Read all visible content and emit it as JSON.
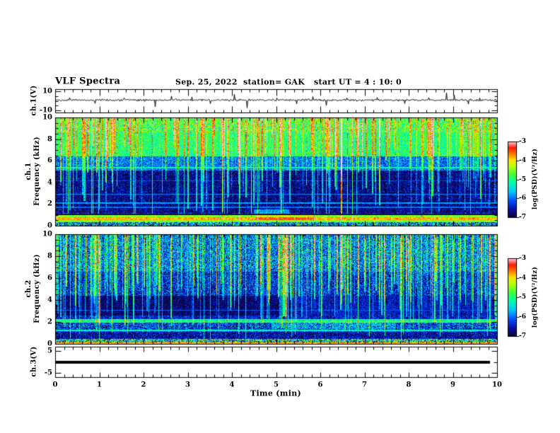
{
  "header": {
    "title": "VLF Spectra",
    "date": "Sep. 25, 2022",
    "station": "station= GAK",
    "start_ut": "start UT =  4 : 10: 0"
  },
  "panels": {
    "ch1_wave": {
      "ylabel": "ch.1(V)",
      "ytick_labels": [
        "10",
        "-10"
      ],
      "ytick_values": [
        10,
        -10
      ]
    },
    "spec1": {
      "ylabel_ch": "ch.1",
      "ylabel_freq": "Frequency (kHz)",
      "ytick_labels": [
        "10",
        "8",
        "6",
        "4",
        "2",
        "0"
      ]
    },
    "spec2": {
      "ylabel_ch": "ch.2",
      "ylabel_freq": "Frequency (kHz)",
      "ytick_labels": [
        "10",
        "8",
        "6",
        "4",
        "2",
        "0"
      ]
    },
    "ch3": {
      "ylabel": "ch.3(V)",
      "ytick_labels": [
        "5",
        "-5"
      ],
      "ytick_values": [
        5,
        -5
      ]
    }
  },
  "xaxis": {
    "label": "Time (min)",
    "tick_labels": [
      "0",
      "1",
      "2",
      "3",
      "4",
      "5",
      "6",
      "7",
      "8",
      "9",
      "10"
    ],
    "tick_values": [
      0,
      1,
      2,
      3,
      4,
      5,
      6,
      7,
      8,
      9,
      10
    ]
  },
  "colorbars": {
    "label": "log(PSD)(V²/Hz)",
    "tick_labels": [
      "-3",
      "-4",
      "-5",
      "-6",
      "-7"
    ],
    "tick_values": [
      -3,
      -4,
      -5,
      -6,
      -7
    ]
  },
  "colormap": {
    "stops": [
      [
        0.0,
        [
          8,
          5,
          45
        ]
      ],
      [
        0.1,
        [
          10,
          10,
          160
        ]
      ],
      [
        0.22,
        [
          0,
          80,
          255
        ]
      ],
      [
        0.34,
        [
          0,
          195,
          255
        ]
      ],
      [
        0.46,
        [
          0,
          255,
          170
        ]
      ],
      [
        0.56,
        [
          60,
          255,
          60
        ]
      ],
      [
        0.68,
        [
          185,
          255,
          0
        ]
      ],
      [
        0.76,
        [
          255,
          225,
          0
        ]
      ],
      [
        0.84,
        [
          255,
          120,
          0
        ]
      ],
      [
        0.92,
        [
          255,
          25,
          0
        ]
      ],
      [
        1.0,
        [
          255,
          205,
          225
        ]
      ]
    ]
  },
  "chart_data": [
    {
      "type": "line",
      "name": "ch1-waveform",
      "ylabel": "ch.1(V)",
      "xlim": [
        0,
        10
      ],
      "ylim": [
        -10,
        10
      ],
      "baseline": 0.8,
      "noise_sigma": 0.9,
      "seed": 42,
      "spikes": [
        [
          0.32,
          3.2
        ],
        [
          0.9,
          -2.8
        ],
        [
          1.55,
          3.0
        ],
        [
          2.25,
          -6.5
        ],
        [
          2.62,
          5.0
        ],
        [
          3.08,
          4.2
        ],
        [
          3.5,
          -3.0
        ],
        [
          4.05,
          7.0
        ],
        [
          4.33,
          -7.5
        ],
        [
          5.0,
          3.0
        ],
        [
          5.45,
          -3.2
        ],
        [
          5.82,
          4.5
        ],
        [
          6.12,
          -5.0
        ],
        [
          6.6,
          3.0
        ],
        [
          7.28,
          3.6
        ],
        [
          7.9,
          -3.0
        ],
        [
          8.45,
          3.2
        ],
        [
          8.85,
          8.5
        ],
        [
          9.02,
          6.0
        ],
        [
          9.35,
          -3.5
        ],
        [
          9.6,
          3.0
        ]
      ]
    },
    {
      "type": "heatmap",
      "name": "ch1-spectrogram",
      "ylabel": "ch.1 Frequency (kHz)",
      "xlim": [
        0,
        10
      ],
      "ylim": [
        0,
        10
      ],
      "zlabel": "log(PSD)(V²/Hz)",
      "zlim": [
        -7,
        -3
      ],
      "seed": 1234,
      "bands": [
        {
          "f": [
            0,
            0.3
          ],
          "v": -5.8,
          "noise": 1.4
        },
        {
          "f": [
            0.3,
            0.55
          ],
          "v": -4.55,
          "noise": 0.35
        },
        {
          "f": [
            0.55,
            0.78
          ],
          "v": -3.85,
          "noise": 0.3
        },
        {
          "f": [
            0.78,
            0.95
          ],
          "v": -4.5,
          "noise": 0.35
        },
        {
          "f": [
            0.95,
            1.2
          ],
          "v": -6.4,
          "noise": 0.7
        },
        {
          "f": [
            1.2,
            5.1
          ],
          "v": -6.7,
          "noise": 0.5
        },
        {
          "f": [
            5.1,
            6.4
          ],
          "v": -5.95,
          "noise": 0.65
        },
        {
          "f": [
            6.4,
            8.6
          ],
          "v": -4.95,
          "noise": 0.5
        },
        {
          "f": [
            8.6,
            10.01
          ],
          "v": -4.75,
          "noise": 0.75
        }
      ],
      "hlines": [
        {
          "f": 5.35,
          "v": -5.2,
          "hw": 0.06
        },
        {
          "f": 2.92,
          "v": -5.9,
          "hw": 0.05
        },
        {
          "f": 2.08,
          "v": -5.8,
          "hw": 0.05
        },
        {
          "f": 1.7,
          "v": -6.0,
          "hw": 0.05
        },
        {
          "f": 4.15,
          "v": -6.2,
          "hw": 0.04
        },
        {
          "f": 1.05,
          "v": -6.85,
          "hw": 0.07,
          "set": true
        }
      ],
      "vstreaks": [
        {
          "count": 130,
          "f_bottom": [
            0.9,
            5.3
          ],
          "f_top": 10,
          "dv": [
            0.5,
            1.5
          ],
          "width": [
            1,
            2
          ]
        },
        {
          "count": 50,
          "f_bottom": [
            6.0,
            8.5
          ],
          "f_top": 10,
          "dv": [
            0.8,
            1.6
          ],
          "width": [
            1,
            2
          ]
        },
        {
          "count": 25,
          "f_bottom": [
            0.4,
            1.2
          ],
          "f_top": 10,
          "dv": [
            1.0,
            1.8
          ],
          "width": [
            1,
            1
          ]
        }
      ],
      "events": [
        {
          "t": [
            4.55,
            5.85
          ],
          "f": [
            0.5,
            0.95
          ],
          "dv": 0.35
        },
        {
          "t": [
            4.5,
            5.3
          ],
          "f": [
            0.95,
            1.5
          ],
          "dv": 0.9
        }
      ]
    },
    {
      "type": "heatmap",
      "name": "ch2-spectrogram",
      "ylabel": "ch.2 Frequency (kHz)",
      "xlim": [
        0,
        10
      ],
      "ylim": [
        0,
        10
      ],
      "zlabel": "log(PSD)(V²/Hz)",
      "zlim": [
        -7,
        -3
      ],
      "seed": 777,
      "bands": [
        {
          "f": [
            0,
            0.45
          ],
          "v": -5.3,
          "noise": 1.9
        },
        {
          "f": [
            0.45,
            1.1
          ],
          "v": -6.6,
          "noise": 0.55
        },
        {
          "f": [
            1.1,
            1.32
          ],
          "v": -6.05,
          "noise": 0.6
        },
        {
          "f": [
            1.32,
            1.95
          ],
          "v": -6.25,
          "noise": 0.85
        },
        {
          "f": [
            1.95,
            2.25
          ],
          "v": -5.3,
          "noise": 0.7
        },
        {
          "f": [
            2.25,
            2.55
          ],
          "v": -6.45,
          "noise": 0.5
        },
        {
          "f": [
            2.55,
            4.4
          ],
          "v": -6.8,
          "noise": 0.4
        },
        {
          "f": [
            4.4,
            6.6
          ],
          "v": -6.35,
          "noise": 0.75
        },
        {
          "f": [
            6.6,
            10.01
          ],
          "v": -5.95,
          "noise": 0.95
        }
      ],
      "hlines": [
        {
          "f": 2.02,
          "v": -4.95,
          "hw": 0.06
        },
        {
          "f": 2.2,
          "v": -5.3,
          "hw": 0.05
        },
        {
          "f": 1.22,
          "v": -5.25,
          "hw": 0.05
        },
        {
          "f": 3.05,
          "v": -6.1,
          "hw": 0.04
        },
        {
          "f": 0.06,
          "v": -3.8,
          "hw": 0.06
        }
      ],
      "vstreaks": [
        {
          "count": 220,
          "f_bottom": [
            1.4,
            6.0
          ],
          "f_top": 10,
          "dv": [
            0.5,
            1.3
          ],
          "width": [
            1,
            2
          ]
        },
        {
          "count": 30,
          "f_bottom": [
            0.3,
            1.3
          ],
          "f_top": 10,
          "dv": [
            0.8,
            1.5
          ],
          "width": [
            1,
            1
          ]
        },
        {
          "count": 10,
          "f_bottom": [
            3.5,
            5.5
          ],
          "f_top": 10,
          "dv": [
            1.6,
            2.2
          ],
          "width": [
            1,
            2
          ]
        }
      ],
      "events": [
        {
          "t": [
            5.35,
            9.9
          ],
          "f": [
            2.55,
            4.4
          ],
          "dv": 0.3
        },
        {
          "t": [
            4.9,
            7.7
          ],
          "f": [
            1.35,
            1.98
          ],
          "dv": 0.45
        },
        {
          "t": [
            5.15,
            5.25
          ],
          "f": [
            2.5,
            10
          ],
          "dv": 1.8
        }
      ]
    },
    {
      "type": "line",
      "name": "ch3-trace",
      "ylabel": "ch.3(V)",
      "xlim": [
        0,
        10
      ],
      "ylim": [
        -5,
        5
      ],
      "value": 0,
      "x_end": 9.84,
      "line_width": 4
    }
  ]
}
